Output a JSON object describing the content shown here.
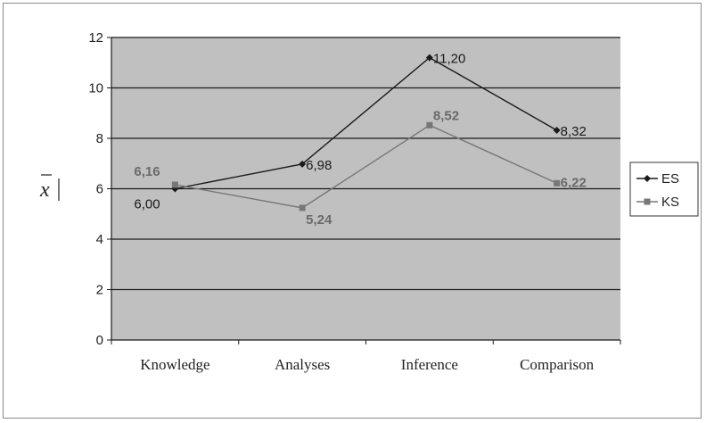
{
  "chart_data": {
    "type": "line",
    "categories": [
      "Knowledge",
      "Analyses",
      "Inference",
      "Comparison"
    ],
    "series": [
      {
        "name": "ES",
        "values": [
          6.0,
          6.98,
          11.2,
          8.32
        ],
        "labels": [
          "6,00",
          "6,98",
          "11,20",
          "8,32"
        ],
        "color": "#1a1a1a",
        "marker": "diamond"
      },
      {
        "name": "KS",
        "values": [
          6.16,
          5.24,
          8.52,
          6.22
        ],
        "labels": [
          "6,16",
          "5,24",
          "8,52",
          "6,22"
        ],
        "color": "#777777",
        "marker": "square"
      }
    ],
    "ylabel": "x",
    "ylim": [
      0,
      12
    ],
    "yticks": [
      "0",
      "2",
      "4",
      "6",
      "8",
      "10",
      "12"
    ],
    "ytick_values": [
      0,
      2,
      4,
      6,
      8,
      10,
      12
    ],
    "grid": true,
    "plot_background": "#c0c0c0",
    "legend": "right"
  }
}
